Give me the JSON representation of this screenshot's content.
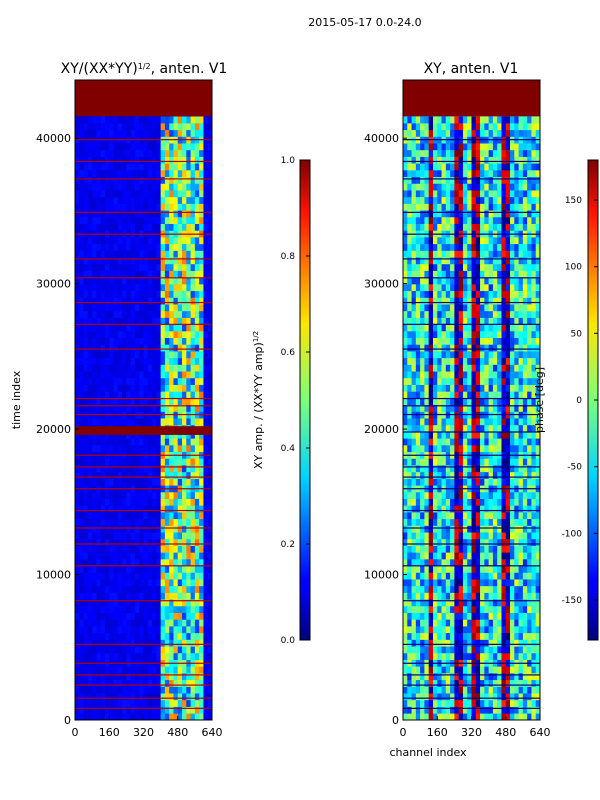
{
  "figure": {
    "suptitle": "2015-05-17 0.0-24.0"
  },
  "chart_data": [
    {
      "type": "heatmap",
      "title": "XY/(XX*YY)^{1/2}, anten. V1",
      "title_main": "XY/(XX*YY)",
      "title_sup": "1/2",
      "title_tail": ", anten. V1",
      "xlabel": "",
      "ylabel": "time index",
      "xlim": [
        0,
        640
      ],
      "ylim": [
        0,
        44000
      ],
      "xticks": [
        "0",
        "160",
        "320",
        "480",
        "640"
      ],
      "yticks": [
        "0",
        "10000",
        "20000",
        "30000",
        "40000"
      ],
      "colormap": "jet",
      "colorbar": {
        "label_main": "XY amp. / (XX*YY amp)",
        "label_sup": "1/2",
        "min": 0.0,
        "max": 1.0,
        "ticks": [
          "0.0",
          "0.2",
          "0.4",
          "0.6",
          "0.8",
          "1.0"
        ]
      },
      "background_value": 0.08,
      "saturated_block": {
        "t_start": 41500,
        "t_end": 44000,
        "value": 1.0
      },
      "saturated_band": {
        "t_start": 19600,
        "t_end": 20200,
        "value": 1.0
      },
      "active_channels": {
        "start": 410,
        "end": 600,
        "typical_value": 0.45
      },
      "flag_rows": [
        800,
        1500,
        2400,
        3100,
        3900,
        5200,
        8200,
        10600,
        12100,
        13200,
        14400,
        15900,
        16700,
        17400,
        18200,
        21000,
        21600,
        22100,
        25500,
        27200,
        28700,
        30400,
        31700,
        33400,
        34900,
        37200,
        38400,
        39900
      ],
      "flag_value": 0.95
    },
    {
      "type": "heatmap",
      "title": "XY, anten. V1",
      "xlabel": "channel index",
      "ylabel": "",
      "xlim": [
        0,
        640
      ],
      "ylim": [
        0,
        44000
      ],
      "xticks": [
        "0",
        "160",
        "320",
        "480",
        "640"
      ],
      "yticks": [
        "0",
        "10000",
        "20000",
        "30000",
        "40000"
      ],
      "colormap": "jet",
      "colorbar": {
        "label": "phase [deg]",
        "min": -180,
        "max": 180,
        "ticks": [
          "-150",
          "-100",
          "-50",
          "0",
          "50",
          "100",
          "150"
        ]
      },
      "saturated_block": {
        "t_start": 41500,
        "t_end": 44000,
        "value": 180
      },
      "stripe_channels": [
        130,
        260,
        340,
        480
      ],
      "flag_rows": [
        800,
        1500,
        2400,
        3100,
        3900,
        5200,
        8200,
        10600,
        12100,
        13200,
        14400,
        15900,
        16700,
        17400,
        18200,
        19800,
        21000,
        21600,
        22100,
        25500,
        27200,
        28700,
        30400,
        31700,
        33400,
        34900,
        37200,
        38400,
        39900
      ],
      "flag_value": -180
    }
  ]
}
